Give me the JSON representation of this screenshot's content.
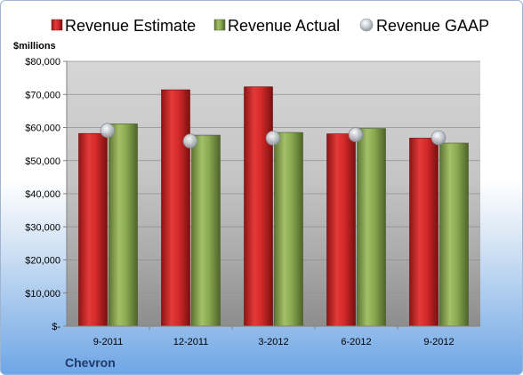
{
  "chart_data": {
    "type": "bar",
    "ylabel": "$millions",
    "company": "Chevron",
    "categories": [
      "9-2011",
      "12-2011",
      "3-2012",
      "6-2012",
      "9-2012"
    ],
    "ylim": [
      0,
      80000
    ],
    "ytick_labels": [
      "$-",
      "$10,000",
      "$20,000",
      "$30,000",
      "$40,000",
      "$50,000",
      "$60,000",
      "$70,000",
      "$80,000"
    ],
    "grid": true,
    "legend_position": "top",
    "series": [
      {
        "name": "Revenue Estimate",
        "kind": "bar",
        "color": "#d42a2a",
        "values": [
          58200,
          71400,
          72300,
          58100,
          56800
        ]
      },
      {
        "name": "Revenue Actual",
        "kind": "bar",
        "color": "#8aaa52",
        "values": [
          61100,
          57700,
          58500,
          59700,
          55300
        ]
      },
      {
        "name": "Revenue GAAP",
        "kind": "marker",
        "color": "#b9bec5",
        "values": [
          59100,
          55900,
          56800,
          57800,
          56900
        ]
      }
    ]
  }
}
